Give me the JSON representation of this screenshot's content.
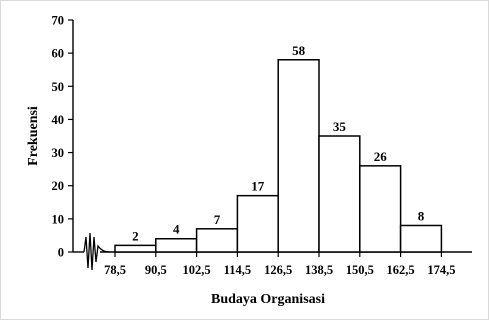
{
  "chart_data": {
    "type": "bar",
    "xlabel": "Budaya Organisasi",
    "ylabel": "Frekuensi",
    "boundaries": [
      "78,5",
      "90,5",
      "102,5",
      "114,5",
      "126,5",
      "138,5",
      "150,5",
      "162,5",
      "174,5"
    ],
    "values": [
      2,
      4,
      7,
      17,
      58,
      35,
      26,
      8
    ],
    "data_labels": [
      "2",
      "4",
      "7",
      "17",
      "58",
      "35",
      "26",
      "8"
    ],
    "yticks": [
      "0",
      "10",
      "20",
      "30",
      "40",
      "50",
      "60",
      "70"
    ],
    "ylim": [
      0,
      70
    ],
    "axis_break": true,
    "grid": false
  }
}
